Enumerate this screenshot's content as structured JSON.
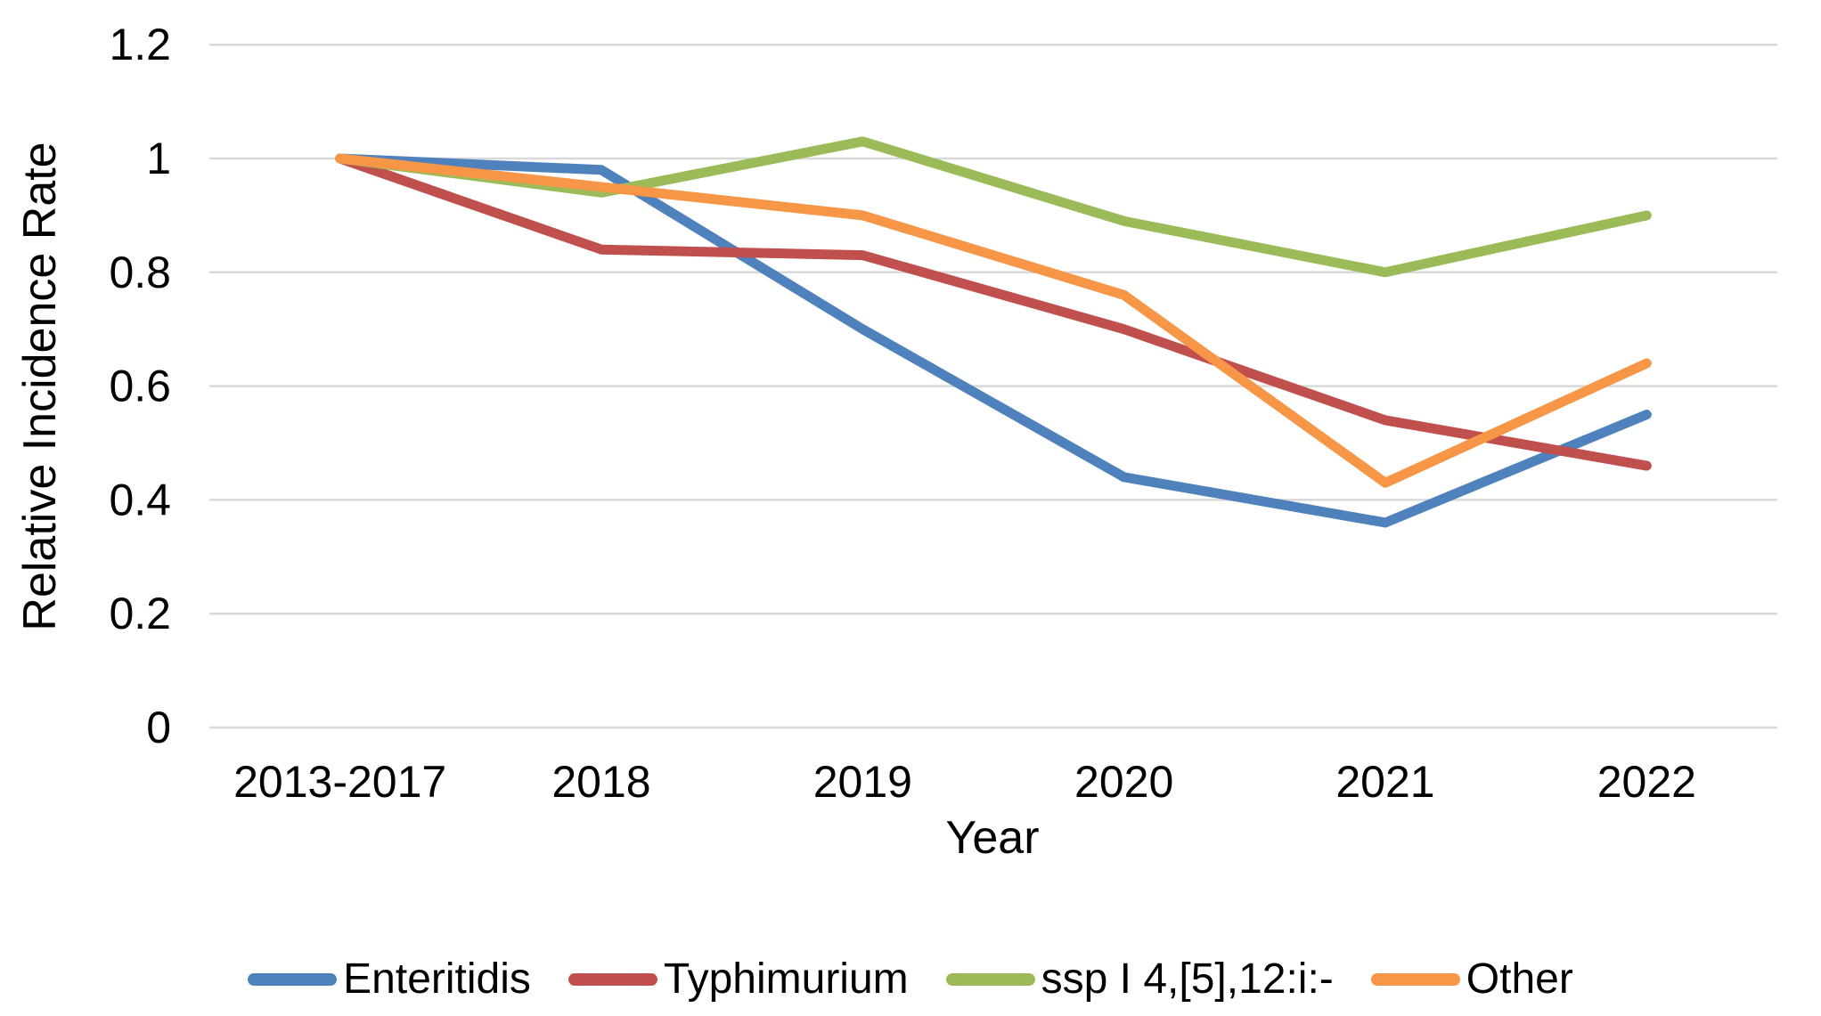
{
  "chart_data": {
    "type": "line",
    "title": "",
    "xlabel": "Year",
    "ylabel": "Relative Incidence Rate",
    "categories": [
      "2013-2017",
      "2018",
      "2019",
      "2020",
      "2021",
      "2022"
    ],
    "series": [
      {
        "name": "Enteritidis",
        "color": "#4F81BD",
        "values": [
          1.0,
          0.98,
          0.7,
          0.44,
          0.36,
          0.55
        ]
      },
      {
        "name": "Typhimurium",
        "color": "#C0504D",
        "values": [
          1.0,
          0.84,
          0.83,
          0.7,
          0.54,
          0.46
        ]
      },
      {
        "name": "ssp I 4,[5],12:i:-",
        "color": "#9BBB59",
        "values": [
          1.0,
          0.94,
          1.03,
          0.89,
          0.8,
          0.9
        ]
      },
      {
        "name": "Other",
        "color": "#F79646",
        "values": [
          1.0,
          0.95,
          0.9,
          0.76,
          0.43,
          0.64
        ]
      }
    ],
    "ylim": [
      0,
      1.2
    ],
    "yticks": {
      "values": [
        0,
        0.2,
        0.4,
        0.6,
        0.8,
        1,
        1.2
      ],
      "labels": [
        "0",
        "0.2",
        "0.4",
        "0.6",
        "0.8",
        "1",
        "1.2"
      ]
    },
    "grid": "horizontal",
    "legend_position": "bottom",
    "gridline_color": "#D9D9D9",
    "text_color": "#000000",
    "background_color": "#FFFFFF"
  }
}
